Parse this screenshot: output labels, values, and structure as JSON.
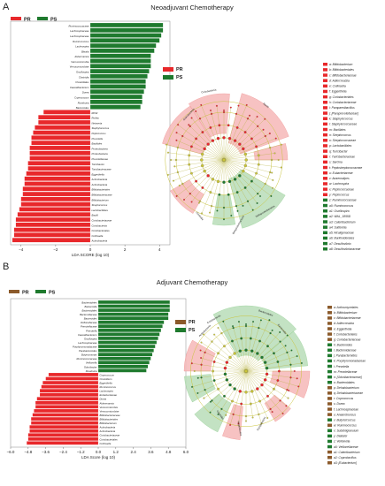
{
  "panels": [
    {
      "letter": "A",
      "title": "Neoadjuvant Chemotherapy",
      "legend": [
        {
          "label": "PR",
          "color": "#e8282b"
        },
        {
          "label": "PS",
          "color": "#1f7a2e"
        }
      ]
    },
    {
      "letter": "B",
      "title": "Adjuvant Chemotherapy",
      "legend": [
        {
          "label": "PR",
          "color": "#8b5a2b"
        },
        {
          "label": "PS",
          "color": "#1f7a2e"
        }
      ]
    }
  ],
  "chart_data": [
    {
      "type": "bar",
      "title": "Neoadjuvant Chemotherapy",
      "xlabel": "LDA SCORE (log 10)",
      "xlim": [
        -4.6,
        4.6
      ],
      "xticks": [
        -4,
        -2,
        0,
        2,
        4
      ],
      "orientation": "horizontal",
      "series": [
        {
          "name": "PS",
          "color": "#1f7a2e",
          "categories": [
            "Ruminococcaceae",
            "Lachnospiraceae",
            "Lachnospiraceae",
            "Ruminococcus",
            "Lachnospira",
            "Blautia",
            "Akkermansia",
            "Verrucomicrobia",
            "Verrucomicrobiae",
            "Oscillospira",
            "Clostridia",
            "Clostridiales",
            "Faecalibacterium",
            "Dorea",
            "Coprococcus",
            "Roseburia",
            "Bacteroides"
          ],
          "values": [
            4.2,
            4.2,
            4.1,
            4.0,
            3.8,
            3.7,
            3.5,
            3.5,
            3.5,
            3.4,
            3.3,
            3.2,
            3.2,
            3.1,
            3.0,
            3.0,
            2.9
          ]
        },
        {
          "name": "PR",
          "color": "#e8282b",
          "categories": [
            "RF32",
            "Rothia",
            "Neisseria",
            "Staphylococcus",
            "Peptococcus",
            "Prevotella",
            "Bacillales",
            "Proteobacteria",
            "Proteobacteria",
            "Prevotellaceae",
            "Turicibacter",
            "Turicibacteraceae",
            "Eggerthella",
            "Actinobacteria",
            "Actinobacteria",
            "Bifidobacteriales",
            "Bifidobacteriaceae",
            "Bifidobacterium",
            "Streptococcus",
            "Lactobacillales",
            "Bacilli",
            "Coriobacteriaceae",
            "Coriobacteriia",
            "Coriobacteriales",
            "Collinsella",
            "Actinobacteria"
          ],
          "values": [
            -2.7,
            -3.0,
            -3.0,
            -3.2,
            -3.3,
            -3.4,
            -3.4,
            -3.5,
            -3.5,
            -3.5,
            -3.6,
            -3.6,
            -3.7,
            -3.8,
            -3.8,
            -3.9,
            -3.9,
            -4.0,
            -4.0,
            -4.1,
            -4.2,
            -4.3,
            -4.3,
            -4.4,
            -4.4,
            -4.5
          ]
        }
      ]
    },
    {
      "type": "bar",
      "title": "Adjuvant Chemotherapy",
      "xlabel": "LDA Score (log 10)",
      "xlim": [
        -6.0,
        6.0
      ],
      "xticks": [
        -6.0,
        -4.8,
        -3.6,
        -2.4,
        -1.2,
        0.0,
        1.2,
        2.4,
        3.6,
        4.8,
        6.0
      ],
      "orientation": "horizontal",
      "series": [
        {
          "name": "PS",
          "color": "#1f7a2e",
          "categories": [
            "Bacteroidetes",
            "Bacteroidia",
            "Bacteroidales",
            "Bacteroidaceae",
            "Bacteroides",
            "Veillonellaceae",
            "Prevotellaceae",
            "Prevotella",
            "Faecalibacterium",
            "Oscillospira",
            "Lachnospiraceae",
            "Porphyromonadaceae",
            "Parabacteroides",
            "Butyricimonas",
            "Ruminococcaceae",
            "Veillonella",
            "Odoribacter",
            "Roseburia"
          ],
          "values": [
            4.9,
            4.9,
            4.9,
            4.8,
            4.8,
            4.5,
            4.4,
            4.3,
            4.2,
            4.1,
            4.0,
            3.9,
            3.8,
            3.7,
            3.6,
            3.5,
            3.4,
            3.3
          ]
        },
        {
          "name": "PR",
          "color": "#e8282b",
          "categories": [
            "Coprococcus",
            "Clostridium",
            "Eggerthella",
            "Ruminococcus",
            "Lachnospira",
            "Eubacteriaceae",
            "Dorea",
            "Akkermansia",
            "Verrucomicrobia",
            "Verrucomicrobiae",
            "Bifidobacteriaceae",
            "Bifidobacteriales",
            "Bifidobacterium",
            "Actinobacteria",
            "Actinobacteria",
            "Coriobacteriaceae",
            "Coriobacteriales",
            "Collinsella"
          ],
          "values": [
            -3.4,
            -3.6,
            -3.8,
            -3.9,
            -4.0,
            -4.0,
            -4.2,
            -4.3,
            -4.3,
            -4.4,
            -4.5,
            -4.6,
            -4.6,
            -4.7,
            -4.7,
            -4.8,
            -4.8,
            -4.9
          ]
        }
      ]
    }
  ],
  "cladograms": [
    {
      "legend": [
        {
          "key": "a",
          "label": "Bifidobacterium",
          "group": "PR"
        },
        {
          "key": "b",
          "label": "Bifidobacteriales",
          "group": "PR"
        },
        {
          "key": "c",
          "label": "Bifidobacteriaceae",
          "group": "PR"
        },
        {
          "key": "d",
          "label": "Adlercreutzia",
          "group": "PR"
        },
        {
          "key": "e",
          "label": "Collinsella",
          "group": "PR"
        },
        {
          "key": "f",
          "label": "Eggerthella",
          "group": "PR"
        },
        {
          "key": "g",
          "label": "Coriobacteriales",
          "group": "PR"
        },
        {
          "key": "h",
          "label": "Coriobacteriaceae",
          "group": "PR"
        },
        {
          "key": "i",
          "label": "Parapaenibacillus",
          "group": "PR"
        },
        {
          "key": "j",
          "label": "[Paraprevotellaceae]",
          "group": "PR"
        },
        {
          "key": "k",
          "label": "Staphylococcus",
          "group": "PR"
        },
        {
          "key": "l",
          "label": "Staphylococcaceae",
          "group": "PR"
        },
        {
          "key": "m",
          "label": "Bacillales",
          "group": "PR"
        },
        {
          "key": "n",
          "label": "Streptococcus",
          "group": "PR"
        },
        {
          "key": "o",
          "label": "Streptococcaceae",
          "group": "PR"
        },
        {
          "key": "p",
          "label": "Lactobacillales",
          "group": "PR"
        },
        {
          "key": "q",
          "label": "Turicibacter",
          "group": "PR"
        },
        {
          "key": "r",
          "label": "Turicibacteraceae",
          "group": "PR"
        },
        {
          "key": "s",
          "label": "Sarcina",
          "group": "PR"
        },
        {
          "key": "t",
          "label": "Peptostreptococcaceae",
          "group": "PR"
        },
        {
          "key": "u",
          "label": "Eubacteriaceae",
          "group": "PR"
        },
        {
          "key": "v",
          "label": "Anaerostipes",
          "group": "PR"
        },
        {
          "key": "w",
          "label": "Lachnospira",
          "group": "PR"
        },
        {
          "key": "x",
          "label": "Peptococcaceae",
          "group": "PR"
        },
        {
          "key": "y",
          "label": "Peptococcus",
          "group": "PR"
        },
        {
          "key": "z",
          "label": "Ruminococcaceae",
          "group": "PS"
        },
        {
          "key": "a0",
          "label": "Ruminococcus",
          "group": "PS"
        },
        {
          "key": "a1",
          "label": "Oscillospira",
          "group": "PS"
        },
        {
          "key": "a2",
          "label": "WAL_1855D",
          "group": "PS"
        },
        {
          "key": "a3",
          "label": "Catenibacterium",
          "group": "PS"
        },
        {
          "key": "a4",
          "label": "Sutterella",
          "group": "PS"
        },
        {
          "key": "a5",
          "label": "Alcaligenaceae",
          "group": "PS"
        },
        {
          "key": "a6",
          "label": "Burkholderiales",
          "group": "PS"
        },
        {
          "key": "a7",
          "label": "Desulfovibrio",
          "group": "PS"
        },
        {
          "key": "a8",
          "label": "Desulfovibrionaceae",
          "group": "PS"
        }
      ]
    },
    {
      "legend": [
        {
          "key": "a",
          "label": "Actinomycetales",
          "group": "PR"
        },
        {
          "key": "b",
          "label": "Bifidobacterium",
          "group": "PR"
        },
        {
          "key": "c",
          "label": "Bifidobacteriaceae",
          "group": "PR"
        },
        {
          "key": "d",
          "label": "Adlercreutzia",
          "group": "PR"
        },
        {
          "key": "e",
          "label": "Eggerthella",
          "group": "PR"
        },
        {
          "key": "f",
          "label": "Coriobacteriales",
          "group": "PR"
        },
        {
          "key": "g",
          "label": "Coriobacteriaceae",
          "group": "PR"
        },
        {
          "key": "h",
          "label": "Bacteroides",
          "group": "PS"
        },
        {
          "key": "i",
          "label": "Bacteroidaceae",
          "group": "PS"
        },
        {
          "key": "j",
          "label": "Parabacteroides",
          "group": "PS"
        },
        {
          "key": "k",
          "label": "Porphyromonadaceae",
          "group": "PS"
        },
        {
          "key": "l",
          "label": "Prevotella",
          "group": "PS"
        },
        {
          "key": "m",
          "label": "Prevotellaceae",
          "group": "PS"
        },
        {
          "key": "n",
          "label": "[Odoribacteraceae]",
          "group": "PS"
        },
        {
          "key": "o",
          "label": "Bacteroidales",
          "group": "PS"
        },
        {
          "key": "p",
          "label": "Dehalobacterium",
          "group": "PR"
        },
        {
          "key": "q",
          "label": "Dehalobacteriaceae",
          "group": "PR"
        },
        {
          "key": "r",
          "label": "Coprococcus",
          "group": "PR"
        },
        {
          "key": "s",
          "label": "Dorea",
          "group": "PR"
        },
        {
          "key": "t",
          "label": "Lachnospiraceae",
          "group": "PR"
        },
        {
          "key": "u",
          "label": "Anaerotruncus",
          "group": "PR"
        },
        {
          "key": "v",
          "label": "Butyricicoccus",
          "group": "PS"
        },
        {
          "key": "w",
          "label": "Ruminococcus",
          "group": "PR"
        },
        {
          "key": "x",
          "label": "Subdoligranulum",
          "group": "PS"
        },
        {
          "key": "y",
          "label": "Dialister",
          "group": "PS"
        },
        {
          "key": "z",
          "label": "Veillonella",
          "group": "PS"
        },
        {
          "key": "a0",
          "label": "Veillonellaceae",
          "group": "PS"
        },
        {
          "key": "a1",
          "label": "Catenibacterium",
          "group": "PR"
        },
        {
          "key": "a2",
          "label": "Coprobacillus",
          "group": "PR"
        },
        {
          "key": "a3",
          "label": "[Eubacterium]",
          "group": "PR"
        }
      ]
    }
  ],
  "clade_labels": {
    "A": [
      "Actinobacteria",
      "Coriobacteriia",
      "Bacilli",
      "Clostridia",
      "Betaproteobacteria",
      "Deltaproteobacteria"
    ],
    "B": [
      "Bacteroidetes",
      "Bacteroidia",
      "Actinobacteria",
      "Coriobacteriia",
      "Clostridia",
      "Negativicutes",
      "Erysipelotrichi"
    ]
  },
  "colors": {
    "pr": "#e8282b",
    "ps": "#1f7a2e",
    "pr_shade": "#f6b8b8",
    "ps_shade": "#b9ddb9",
    "node": "#c9c43a",
    "b_legend_pr": "#8b5a2b"
  }
}
